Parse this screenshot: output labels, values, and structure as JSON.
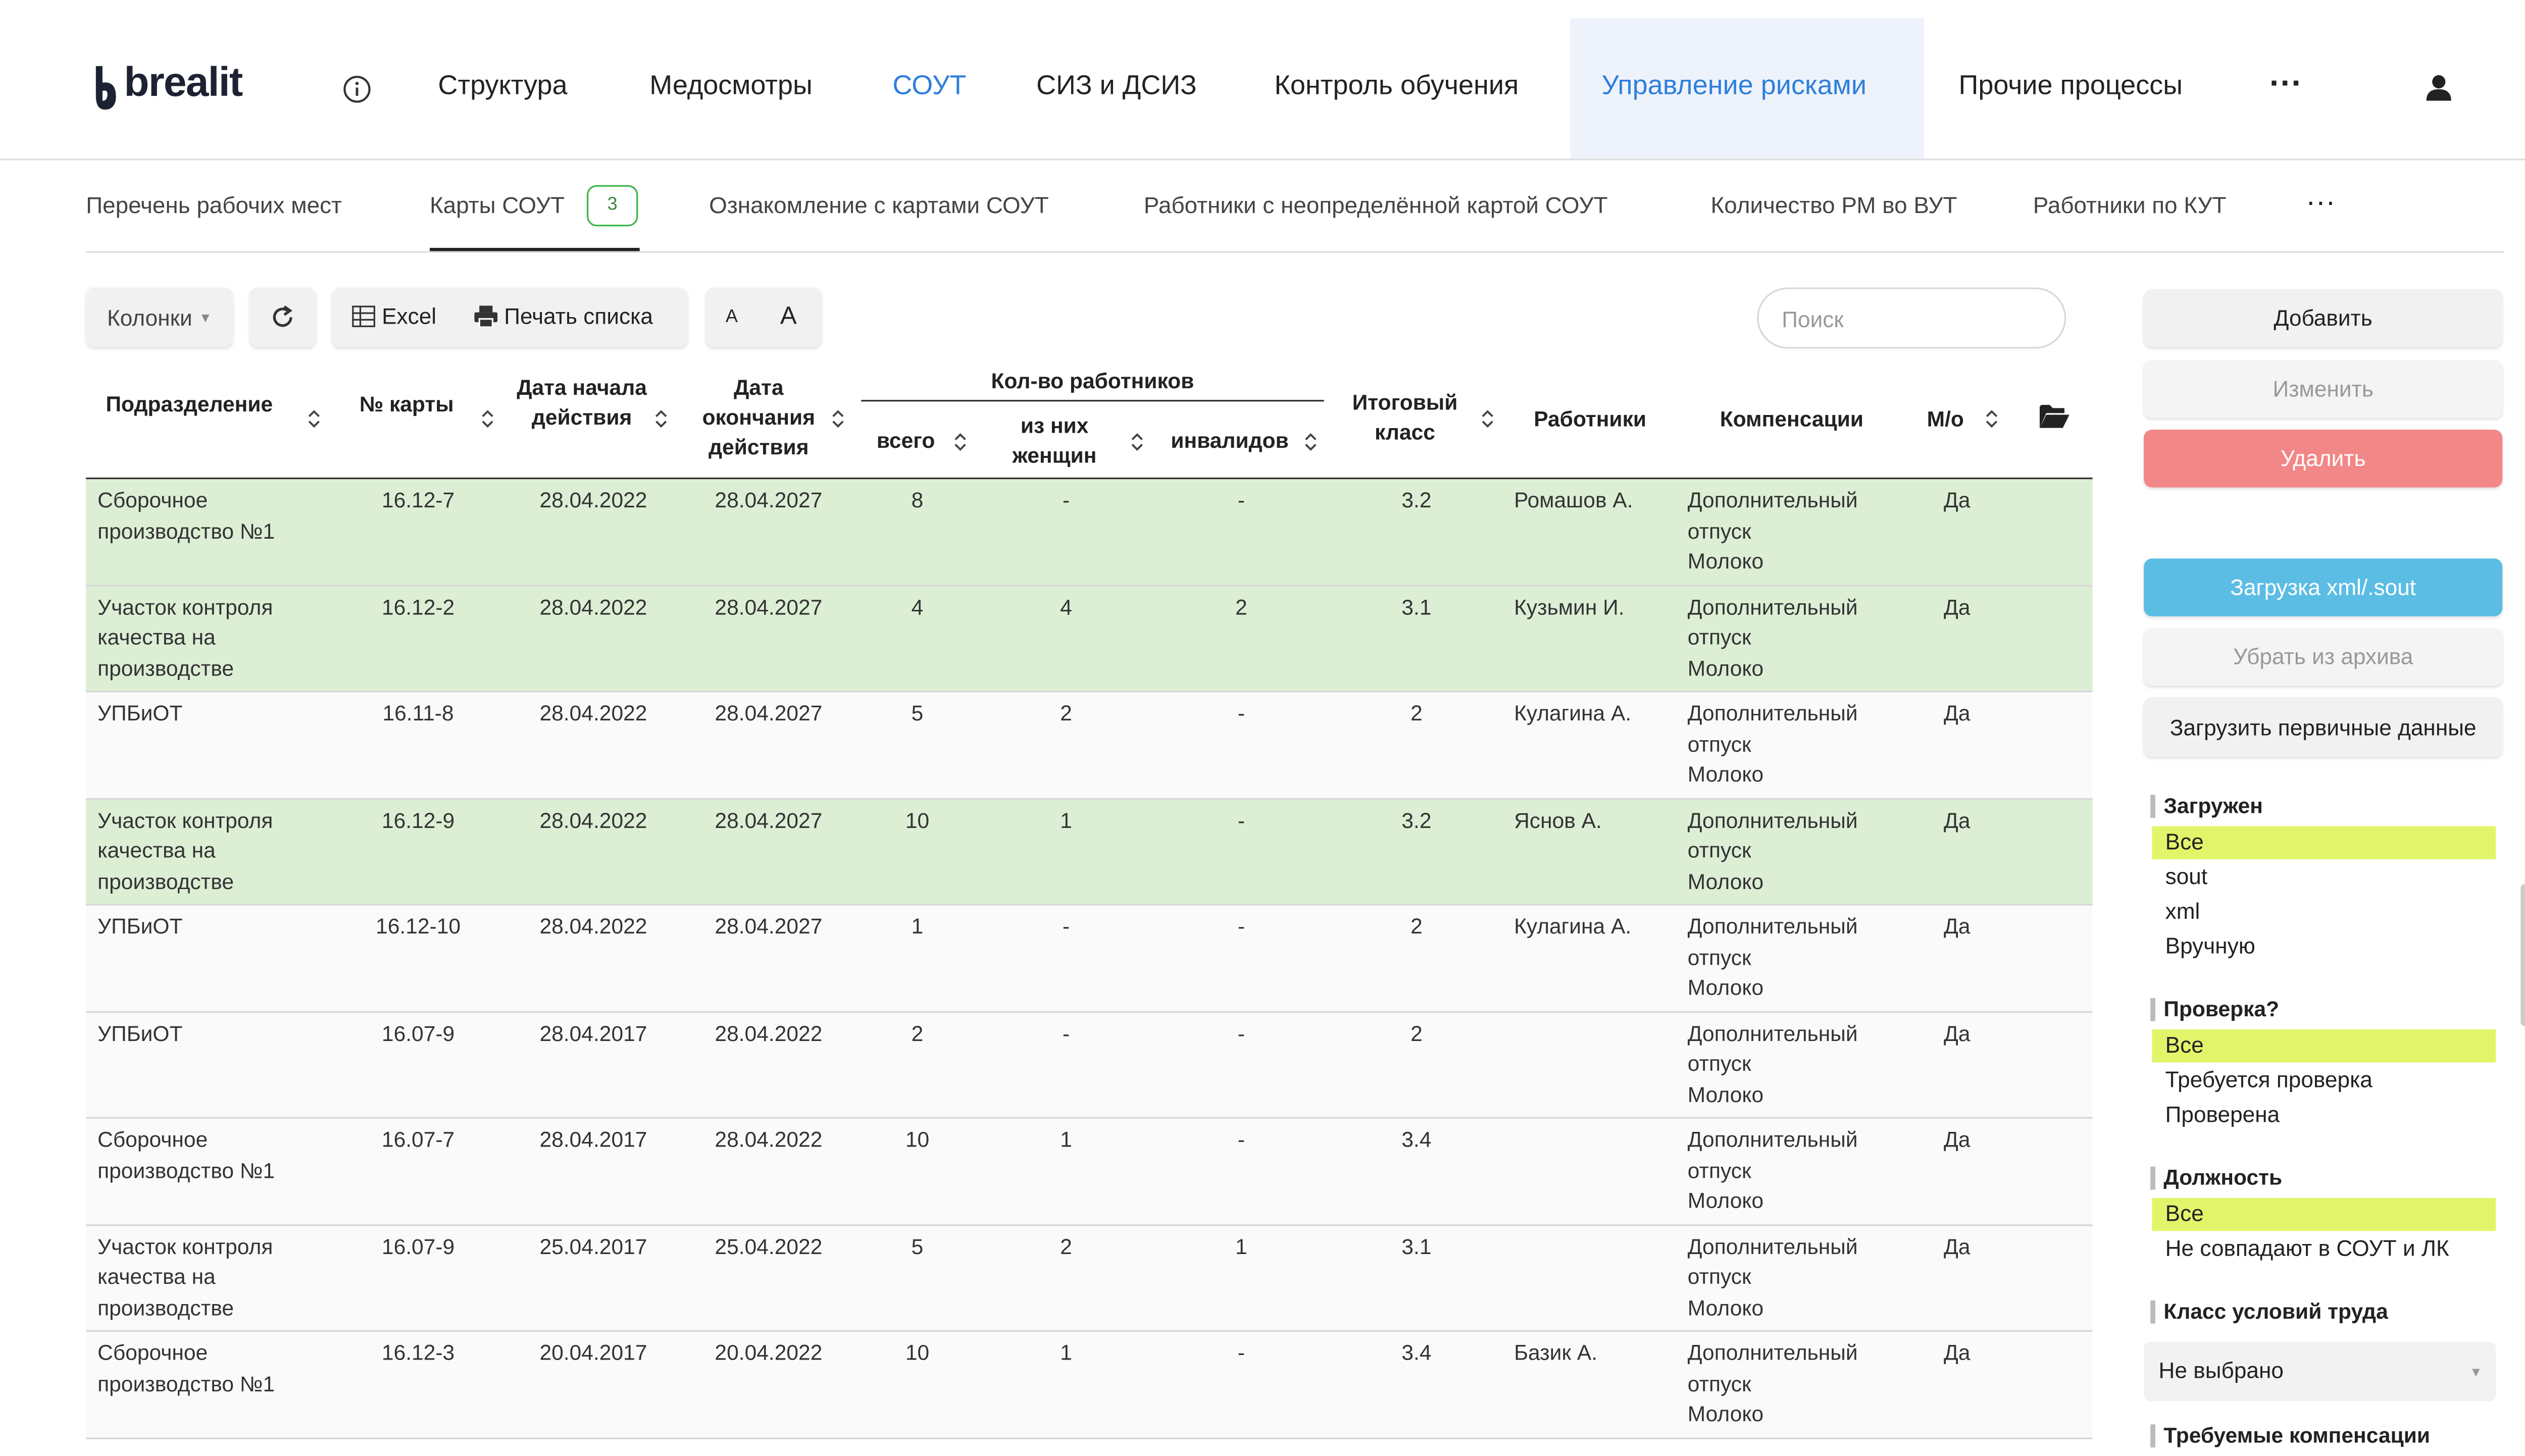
{
  "header": {
    "logo": "brealit",
    "nav": [
      {
        "label": "Структура",
        "active": false,
        "highlighted": false
      },
      {
        "label": "Медосмотры",
        "active": false,
        "highlighted": false
      },
      {
        "label": "СОУТ",
        "active": true,
        "highlighted": false
      },
      {
        "label": "СИЗ и ДСИЗ",
        "active": false,
        "highlighted": false
      },
      {
        "label": "Контроль обучения",
        "active": false,
        "highlighted": false
      },
      {
        "label": "Управление рисками",
        "active": true,
        "highlighted": true
      },
      {
        "label": "Прочие процессы",
        "active": false,
        "highlighted": false
      }
    ]
  },
  "tabs": [
    {
      "label": "Перечень рабочих мест",
      "active": false
    },
    {
      "label": "Карты СОУТ",
      "active": true,
      "badge": 3
    },
    {
      "label": "Ознакомление с картами СОУТ",
      "active": false
    },
    {
      "label": "Работники с неопределённой картой СОУТ",
      "active": false
    },
    {
      "label": "Количество РМ во ВУТ",
      "active": false
    },
    {
      "label": "Работники по КУТ",
      "active": false
    }
  ],
  "toolbar": {
    "columns": "Колонки",
    "excel": "Excel",
    "print": "Печать списка",
    "font_small": "A",
    "font_large": "A",
    "search_placeholder": "Поиск"
  },
  "table": {
    "headers": {
      "department": "Подразделение",
      "card": "№ карты",
      "start": "Дата начала действия",
      "end": "Дата окончания действия",
      "workers_group": "Кол-во работников",
      "total": "всего",
      "women": "из них женщин",
      "disabled": "инвалидов",
      "class": "Итоговый класс",
      "workers": "Работники",
      "compensation": "Компенсации",
      "mo": "М/о"
    },
    "rows": [
      {
        "highlighted": true,
        "department": "Сборочное производство №1",
        "card": "16.12-7",
        "start": "28.04.2022",
        "end": "28.04.2027",
        "total": 8,
        "women": "-",
        "disabled": "-",
        "class": 3.2,
        "workers": "Ромашов А.",
        "compensation": [
          "Дополнительный отпуск",
          "Молоко"
        ],
        "mo": "Да"
      },
      {
        "highlighted": true,
        "department": "Участок контроля качества на производстве",
        "card": "16.12-2",
        "start": "28.04.2022",
        "end": "28.04.2027",
        "total": 4,
        "women": 4,
        "disabled": 2,
        "class": 3.1,
        "workers": "Кузьмин И.",
        "compensation": [
          "Дополнительный отпуск",
          "Молоко"
        ],
        "mo": "Да"
      },
      {
        "highlighted": false,
        "department": "УПБиОТ",
        "card": "16.11-8",
        "start": "28.04.2022",
        "end": "28.04.2027",
        "total": 5,
        "women": 2,
        "disabled": "-",
        "class": 2,
        "workers": "Кулагина А.",
        "compensation": [
          "Дополнительный отпуск",
          "Молоко"
        ],
        "mo": "Да"
      },
      {
        "highlighted": true,
        "department": "Участок контроля качества на производстве",
        "card": "16.12-9",
        "start": "28.04.2022",
        "end": "28.04.2027",
        "total": 10,
        "women": 1,
        "disabled": "-",
        "class": 3.2,
        "workers": "Яснов А.",
        "compensation": [
          "Дополнительный отпуск",
          "Молоко"
        ],
        "mo": "Да"
      },
      {
        "highlighted": false,
        "department": "УПБиОТ",
        "card": "16.12-10",
        "start": "28.04.2022",
        "end": "28.04.2027",
        "total": 1,
        "women": "-",
        "disabled": "-",
        "class": 2,
        "workers": "Кулагина А.",
        "compensation": [
          "Дополнительный отпуск",
          "Молоко"
        ],
        "mo": "Да"
      },
      {
        "highlighted": false,
        "department": "УПБиОТ",
        "card": "16.07-9",
        "start": "28.04.2017",
        "end": "28.04.2022",
        "total": 2,
        "women": "-",
        "disabled": "-",
        "class": 2,
        "workers": null,
        "compensation": [
          "Дополнительный отпуск",
          "Молоко"
        ],
        "mo": "Да"
      },
      {
        "highlighted": false,
        "department": "Сборочное производство №1",
        "card": "16.07-7",
        "start": "28.04.2017",
        "end": "28.04.2022",
        "total": 10,
        "women": 1,
        "disabled": "-",
        "class": 3.4,
        "workers": null,
        "compensation": [
          "Дополнительный отпуск",
          "Молоко"
        ],
        "mo": "Да"
      },
      {
        "highlighted": false,
        "department": "Участок контроля качества на производстве",
        "card": "16.07-9",
        "start": "25.04.2017",
        "end": "25.04.2022",
        "total": 5,
        "women": 2,
        "disabled": 1,
        "class": 3.1,
        "workers": null,
        "compensation": [
          "Дополнительный отпуск",
          "Молоко"
        ],
        "mo": "Да"
      },
      {
        "highlighted": false,
        "department": "Сборочное производство №1",
        "card": "16.12-3",
        "start": "20.04.2017",
        "end": "20.04.2022",
        "total": 10,
        "women": 1,
        "disabled": "-",
        "class": 3.4,
        "workers": "Базик А.",
        "compensation": [
          "Дополнительный отпуск",
          "Молоко"
        ],
        "mo": "Да"
      }
    ]
  },
  "sidebar": {
    "buttons": [
      {
        "label": "Добавить",
        "style": "default"
      },
      {
        "label": "Изменить",
        "style": "disabled"
      },
      {
        "label": "Удалить",
        "style": "danger"
      },
      {
        "label": "Загрузка xml/.sout",
        "style": "info"
      },
      {
        "label": "Убрать из архива",
        "style": "disabled"
      },
      {
        "label": "Загрузить первичные данные",
        "style": "default"
      }
    ],
    "filters": [
      {
        "title": "Загружен",
        "options": [
          {
            "label": "Все",
            "selected": true
          },
          {
            "label": "sout",
            "selected": false
          },
          {
            "label": "xml",
            "selected": false
          },
          {
            "label": "Вручную",
            "selected": false
          }
        ]
      },
      {
        "title": "Проверка?",
        "options": [
          {
            "label": "Все",
            "selected": true
          },
          {
            "label": "Требуется проверка",
            "selected": false
          },
          {
            "label": "Проверена",
            "selected": false
          }
        ]
      },
      {
        "title": "Должность",
        "options": [
          {
            "label": "Все",
            "selected": true
          },
          {
            "label": "Не совпадают в СОУТ и ЛК",
            "selected": false
          }
        ]
      },
      {
        "title": "Класс условий труда",
        "select": "Не выбрано"
      },
      {
        "title": "Требуемые компенсации"
      }
    ]
  }
}
